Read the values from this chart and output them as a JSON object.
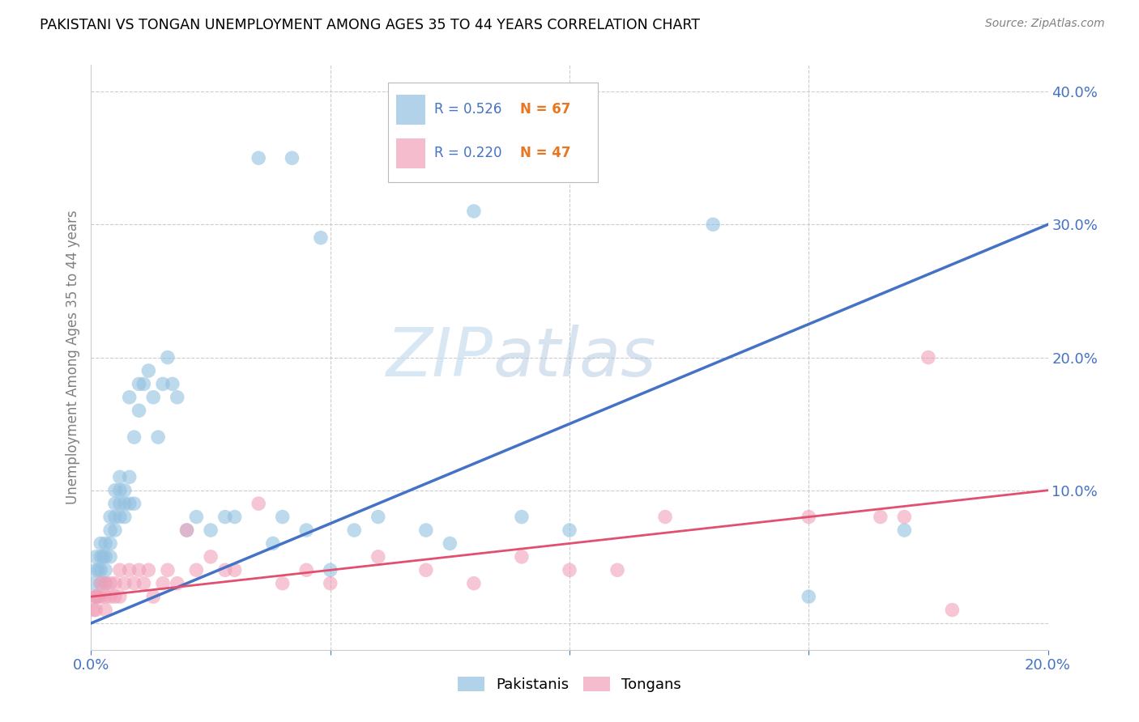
{
  "title": "PAKISTANI VS TONGAN UNEMPLOYMENT AMONG AGES 35 TO 44 YEARS CORRELATION CHART",
  "source": "Source: ZipAtlas.com",
  "ylabel": "Unemployment Among Ages 35 to 44 years",
  "xlim": [
    0.0,
    0.2
  ],
  "ylim": [
    -0.02,
    0.42
  ],
  "blue_color": "#92c0e0",
  "pink_color": "#f0a0b8",
  "blue_line_color": "#4472c4",
  "pink_line_color": "#e05070",
  "n_label_color": "#e87722",
  "tick_color": "#4472c4",
  "grid_color": "#cccccc",
  "watermark_color": "#c8ddf0",
  "pakistanis_x": [
    0.0005,
    0.001,
    0.001,
    0.001,
    0.0015,
    0.002,
    0.002,
    0.002,
    0.002,
    0.0025,
    0.003,
    0.003,
    0.003,
    0.003,
    0.004,
    0.004,
    0.004,
    0.004,
    0.005,
    0.005,
    0.005,
    0.005,
    0.006,
    0.006,
    0.006,
    0.006,
    0.007,
    0.007,
    0.007,
    0.008,
    0.008,
    0.008,
    0.009,
    0.009,
    0.01,
    0.01,
    0.011,
    0.012,
    0.013,
    0.014,
    0.015,
    0.016,
    0.017,
    0.018,
    0.02,
    0.022,
    0.025,
    0.028,
    0.03,
    0.035,
    0.038,
    0.04,
    0.042,
    0.045,
    0.048,
    0.05,
    0.055,
    0.06,
    0.065,
    0.07,
    0.075,
    0.08,
    0.09,
    0.1,
    0.13,
    0.15,
    0.17
  ],
  "pakistanis_y": [
    0.03,
    0.04,
    0.05,
    0.02,
    0.04,
    0.05,
    0.03,
    0.06,
    0.04,
    0.05,
    0.04,
    0.06,
    0.03,
    0.05,
    0.06,
    0.08,
    0.05,
    0.07,
    0.08,
    0.1,
    0.09,
    0.07,
    0.09,
    0.1,
    0.08,
    0.11,
    0.1,
    0.09,
    0.08,
    0.11,
    0.09,
    0.17,
    0.09,
    0.14,
    0.18,
    0.16,
    0.18,
    0.19,
    0.17,
    0.14,
    0.18,
    0.2,
    0.18,
    0.17,
    0.07,
    0.08,
    0.07,
    0.08,
    0.08,
    0.35,
    0.06,
    0.08,
    0.35,
    0.07,
    0.29,
    0.04,
    0.07,
    0.08,
    0.35,
    0.07,
    0.06,
    0.31,
    0.08,
    0.07,
    0.3,
    0.02,
    0.07
  ],
  "tongans_x": [
    0.0005,
    0.001,
    0.001,
    0.001,
    0.0015,
    0.002,
    0.002,
    0.003,
    0.003,
    0.003,
    0.004,
    0.004,
    0.005,
    0.005,
    0.006,
    0.006,
    0.007,
    0.008,
    0.009,
    0.01,
    0.011,
    0.012,
    0.013,
    0.015,
    0.016,
    0.018,
    0.02,
    0.022,
    0.025,
    0.028,
    0.03,
    0.035,
    0.04,
    0.045,
    0.05,
    0.06,
    0.07,
    0.08,
    0.09,
    0.1,
    0.11,
    0.12,
    0.15,
    0.165,
    0.17,
    0.175,
    0.18
  ],
  "tongans_y": [
    0.01,
    0.02,
    0.01,
    0.02,
    0.02,
    0.02,
    0.03,
    0.03,
    0.02,
    0.01,
    0.02,
    0.03,
    0.03,
    0.02,
    0.04,
    0.02,
    0.03,
    0.04,
    0.03,
    0.04,
    0.03,
    0.04,
    0.02,
    0.03,
    0.04,
    0.03,
    0.07,
    0.04,
    0.05,
    0.04,
    0.04,
    0.09,
    0.03,
    0.04,
    0.03,
    0.05,
    0.04,
    0.03,
    0.05,
    0.04,
    0.04,
    0.08,
    0.08,
    0.08,
    0.08,
    0.2,
    0.01
  ]
}
